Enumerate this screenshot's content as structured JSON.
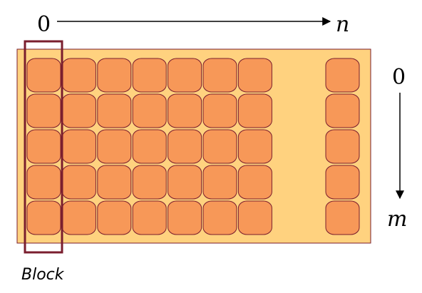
{
  "labels": {
    "x_start": "0",
    "x_end": "n",
    "y_start": "0",
    "y_end": "m",
    "block": "Block"
  },
  "grid": {
    "rows": 5,
    "visible_columns": 8,
    "gap_after_column": 7
  },
  "colors": {
    "panel_fill": "#FFD27F",
    "panel_stroke": "#7A1E2E",
    "cell_fill": "#F79858",
    "cell_stroke": "#7A1E2E",
    "block_stroke": "#7A1E2E",
    "arrow": "#000000"
  }
}
